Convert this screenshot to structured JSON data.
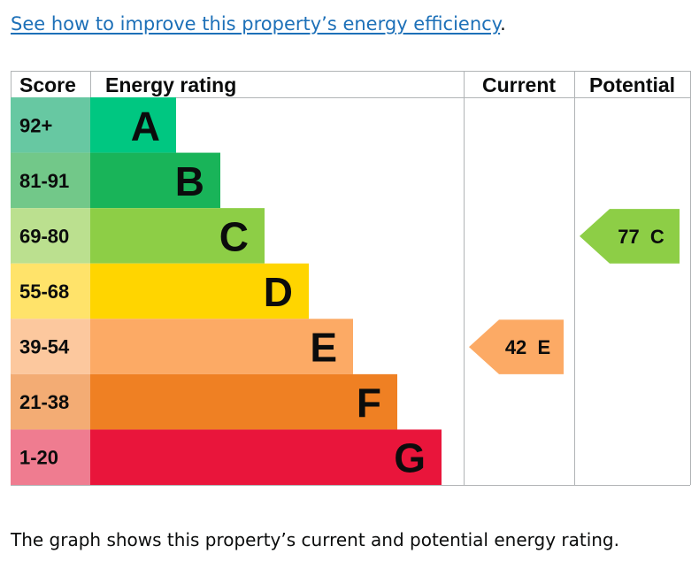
{
  "link": {
    "text": "See how to improve this property’s energy efficiency",
    "trailing": "."
  },
  "caption": "The graph shows this property’s current and potential energy rating.",
  "chart_data": {
    "type": "bar",
    "title": "",
    "headers": {
      "score": "Score",
      "rating": "Energy rating",
      "current": "Current",
      "potential": "Potential"
    },
    "bands": [
      {
        "letter": "A",
        "range": "92+",
        "color": "#00c781",
        "score_color": "#67c8a2",
        "value": 1
      },
      {
        "letter": "B",
        "range": "81-91",
        "color": "#19b459",
        "score_color": "#72c889",
        "value": 2
      },
      {
        "letter": "C",
        "range": "69-80",
        "color": "#8dce46",
        "score_color": "#bbe08f",
        "value": 3
      },
      {
        "letter": "D",
        "range": "55-68",
        "color": "#ffd500",
        "score_color": "#ffe36a",
        "value": 4
      },
      {
        "letter": "E",
        "range": "39-54",
        "color": "#fcaa65",
        "score_color": "#fcc89e",
        "value": 5
      },
      {
        "letter": "F",
        "range": "21-38",
        "color": "#ef8023",
        "score_color": "#f3ac74",
        "value": 6
      },
      {
        "letter": "G",
        "range": "1-20",
        "color": "#e9153b",
        "score_color": "#ef7c90",
        "value": 7
      }
    ],
    "current": {
      "score": 42,
      "rating": "E",
      "label": "42  E",
      "color": "#fcaa65"
    },
    "potential": {
      "score": 77,
      "rating": "C",
      "label": "77  C",
      "color": "#8dce46"
    }
  }
}
